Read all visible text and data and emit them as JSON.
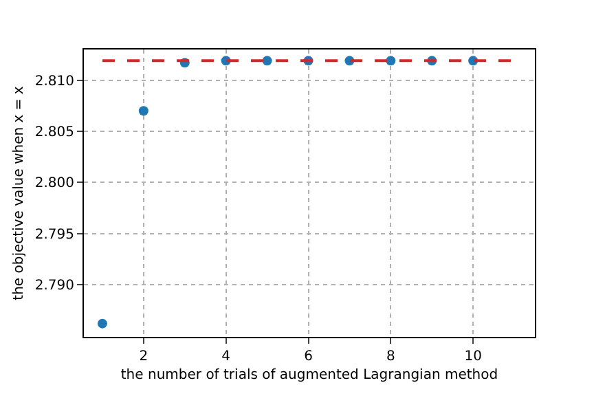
{
  "chart_data": {
    "type": "scatter",
    "xlabel": "the number of trials of augmented Lagrangian method",
    "ylabel": "the objective value when x = x",
    "x": [
      1,
      2,
      3,
      4,
      5,
      6,
      7,
      8,
      9,
      10
    ],
    "series": [
      {
        "color": "#1f77b4",
        "marker": "circle",
        "values": [
          2.7862,
          2.807,
          2.8117,
          2.8119,
          2.8119,
          2.8119,
          2.8119,
          2.8119,
          2.8119,
          2.8119
        ]
      },
      {
        "type": "line",
        "color": "#d62728",
        "line_style": "dashed",
        "x": [
          1,
          11
        ],
        "values": [
          2.8119,
          2.8119
        ]
      }
    ],
    "xlim": [
      0.55,
      11.5
    ],
    "ylim": [
      2.7849,
      2.813
    ],
    "xticks": [
      2,
      4,
      6,
      8,
      10
    ],
    "yticks": [
      {
        "value": 2.79,
        "label": "2.790"
      },
      2.795,
      {
        "value": 2.8,
        "label": "2.800"
      },
      2.805,
      {
        "value": 2.81,
        "label": "2.810"
      }
    ],
    "grid": true
  }
}
